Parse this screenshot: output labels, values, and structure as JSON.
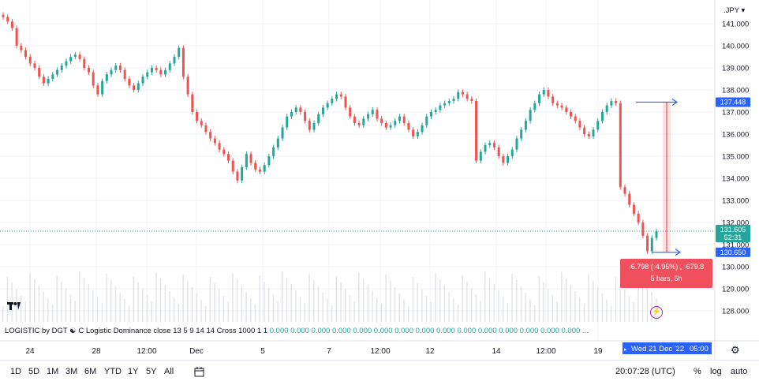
{
  "symbol_suffix": ".JPY",
  "chart_data": {
    "type": "candlestick",
    "y_ticks": [
      "141.000",
      "140.000",
      "139.000",
      "138.000",
      "137.000",
      "136.000",
      "135.000",
      "134.000",
      "133.000",
      "132.000",
      "131.000",
      "130.000",
      "129.000",
      "128.000"
    ],
    "x_ticks": [
      "24",
      "28",
      "12:00",
      "Dec",
      "5",
      "7",
      "12:00",
      "12",
      "14",
      "12:00",
      "19"
    ],
    "ylim": [
      127.5,
      141.6
    ],
    "series": [
      {
        "name": "price",
        "values": [
          141.3,
          141.1,
          140.8,
          140.0,
          139.8,
          139.5,
          139.2,
          139.0,
          138.6,
          138.3,
          138.5,
          138.7,
          138.9,
          139.1,
          139.3,
          139.5,
          139.6,
          139.4,
          139.0,
          138.8,
          138.2,
          137.8,
          138.4,
          138.7,
          138.9,
          139.1,
          138.9,
          138.5,
          138.2,
          138.0,
          138.3,
          138.6,
          138.8,
          139.0,
          138.9,
          138.7,
          138.9,
          139.2,
          139.5,
          139.9,
          138.6,
          137.8,
          137.0,
          136.6,
          136.4,
          136.1,
          135.8,
          135.6,
          135.3,
          135.1,
          134.8,
          134.3,
          133.9,
          134.5,
          135.1,
          134.7,
          134.4,
          134.3,
          134.6,
          135.0,
          135.4,
          135.8,
          136.3,
          136.8,
          137.0,
          137.2,
          137.0,
          136.6,
          136.2,
          136.5,
          136.9,
          137.2,
          137.4,
          137.6,
          137.8,
          137.7,
          137.2,
          136.8,
          136.5,
          136.4,
          136.7,
          136.9,
          137.1,
          136.7,
          136.5,
          136.3,
          136.4,
          136.6,
          136.8,
          136.5,
          136.2,
          135.9,
          136.1,
          136.4,
          136.8,
          137.0,
          137.1,
          137.3,
          137.4,
          137.5,
          137.6,
          137.9,
          137.8,
          137.6,
          137.5,
          134.8,
          135.2,
          135.5,
          135.6,
          135.4,
          135.0,
          134.7,
          135.0,
          135.3,
          135.8,
          136.2,
          136.6,
          137.1,
          137.4,
          137.8,
          138.0,
          137.7,
          137.4,
          137.3,
          137.2,
          137.0,
          136.8,
          136.6,
          136.3,
          136.0,
          135.9,
          136.2,
          136.6,
          137.0,
          137.3,
          137.5,
          137.4,
          133.6,
          133.3,
          132.8,
          132.4,
          132.0,
          131.4,
          130.7,
          131.3,
          131.6
        ]
      }
    ],
    "last_price": "131.605",
    "countdown": "52:31",
    "measure_top_price": "137.448",
    "measure_bottom_price": "130.650"
  },
  "measure": {
    "line1": "-6.798 (-4.95%) , -679.8",
    "line2": "5 bars, 5h"
  },
  "indicator": {
    "label": "LOGISTIC by DGT ☯",
    "text": "C Logistic Dominance close 13 5 9 14 14 Cross 1000 1 1",
    "values": "0.000 0.000 0.000 0.000 0.000 0.000 0.000 0.000 0.000 0.000 0.000 0.000 0.000 0.000 0.000 ..."
  },
  "crosshair_date": "Wed 21 Dec '22",
  "crosshair_time": "05:00",
  "bottom_bar": {
    "timeframes": [
      "1D",
      "5D",
      "1M",
      "3M",
      "6M",
      "YTD",
      "1Y",
      "5Y",
      "All"
    ],
    "clock": "20:07:28 (UTC)",
    "percent": "%",
    "log": "log",
    "auto": "auto"
  },
  "colors": {
    "up": "#26a69a",
    "down": "#ef5350",
    "measure": "#2962ff",
    "price_label": "#26a69a",
    "measure_box": "#f0505e"
  }
}
